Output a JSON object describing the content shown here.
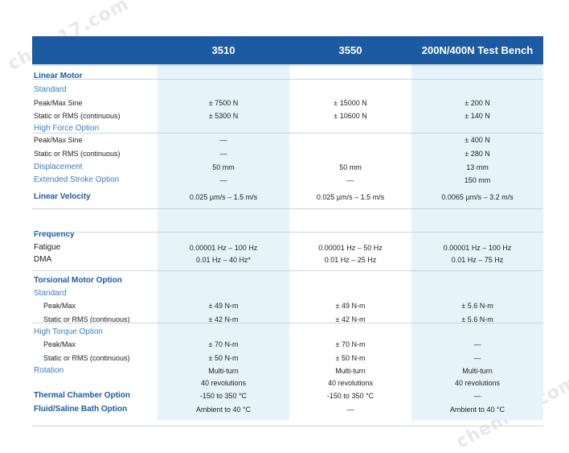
{
  "watermarks": [
    "chem17.com",
    "chem17.com"
  ],
  "header": {
    "col1": "3510",
    "col2": "3550",
    "col3": "200N/400N Test Bench"
  },
  "rows": [
    {
      "label": "Linear Motor",
      "style": "section",
      "v": [
        "",
        "",
        ""
      ]
    },
    {
      "label": "Standard",
      "style": "sub",
      "v": [
        "",
        "",
        ""
      ]
    },
    {
      "label": "Peak/Max Sine",
      "style": "plain",
      "v": [
        "± 7500 N",
        "± 15000 N",
        "± 200 N"
      ]
    },
    {
      "label": "Static or RMS (continuous)",
      "style": "plain",
      "v": [
        "± 5300 N",
        "± 10600 N",
        "± 140 N"
      ]
    },
    {
      "label": "High Force Option",
      "style": "sub",
      "v": [
        "",
        "",
        ""
      ]
    },
    {
      "label": "Peak/Max Sine",
      "style": "plain",
      "v": [
        "—",
        "",
        "± 400 N"
      ]
    },
    {
      "label": "Static or RMS (continuous)",
      "style": "plain",
      "v": [
        "—",
        "",
        "± 280 N"
      ]
    },
    {
      "label": "Displacement",
      "style": "sub",
      "v": [
        "50 mm",
        "50 mm",
        "13 mm"
      ]
    },
    {
      "label": "Extended Stroke Option",
      "style": "sub",
      "v": [
        "—",
        "—",
        "150 mm"
      ]
    },
    {
      "label": "Linear Velocity",
      "style": "section",
      "v": [
        "0.025 µm/s – 1.5 m/s",
        "0.025 µm/s – 1.5 m/s",
        "0.0065 µm/s – 3.2 m/s"
      ]
    },
    {
      "label": "Frequency",
      "style": "section",
      "v": [
        "",
        "",
        ""
      ]
    },
    {
      "label": "Fatigue",
      "style": "plainlg",
      "v": [
        "0.00001 Hz – 100 Hz",
        "0.00001 Hz – 50 Hz",
        "0.00001 Hz – 100 Hz"
      ]
    },
    {
      "label": "DMA",
      "style": "plainlg",
      "v": [
        "0.01 Hz – 40 Hz*",
        "0.01 Hz – 25 Hz",
        "0.01 Hz – 75 Hz"
      ]
    },
    {
      "label": "Torsional Motor Option",
      "style": "section",
      "v": [
        "",
        "",
        ""
      ]
    },
    {
      "label": "Standard",
      "style": "sub",
      "v": [
        "",
        "",
        ""
      ]
    },
    {
      "label": "Peak/Max",
      "style": "indent",
      "v": [
        "± 49 N-m",
        "± 49 N-m",
        "± 5.6 N-m"
      ]
    },
    {
      "label": "Static or RMS (continuous)",
      "style": "indent",
      "v": [
        "± 42 N-m",
        "± 42 N-m",
        "± 5.6 N-m"
      ]
    },
    {
      "label": "High Torque Option",
      "style": "sub",
      "v": [
        "",
        "",
        ""
      ]
    },
    {
      "label": "Peak/Max",
      "style": "indent",
      "v": [
        "± 70 N-m",
        "± 70 N-m",
        "—"
      ]
    },
    {
      "label": "Static or RMS (continuous)",
      "style": "indent",
      "v": [
        "± 50 N-m",
        "± 50 N-m",
        "—"
      ]
    },
    {
      "label": "Rotation",
      "style": "sub",
      "v": [
        "Multi-turn",
        "Multi-turn",
        "Multi-turn"
      ]
    },
    {
      "label": "",
      "style": "plain",
      "v": [
        "40 revolutions",
        "40 revolutions",
        "40 revolutions"
      ]
    },
    {
      "label": "Thermal Chamber Option",
      "style": "section",
      "v": [
        "-150 to 350 °C",
        "-150 to 350 °C",
        "—"
      ]
    },
    {
      "label": "Fluid/Saline Bath Option",
      "style": "section",
      "v": [
        "Ambient to 40 °C",
        "—",
        "Ambient to 40 °C"
      ]
    }
  ],
  "colors": {
    "header": "#1c5aa1",
    "shade": "#e6f3fb",
    "section": "#1c5aa1",
    "sub": "#3a7dc3"
  }
}
